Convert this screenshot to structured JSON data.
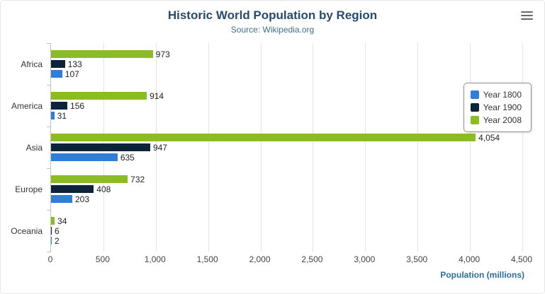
{
  "header": {
    "title": "Historic World Population by Region",
    "subtitle": "Source: Wikipedia.org"
  },
  "export_menu": {
    "icon": "hamburger-icon"
  },
  "chart_data": {
    "type": "bar",
    "orientation": "horizontal",
    "title": "Historic World Population by Region",
    "subtitle": "Source: Wikipedia.org",
    "categories": [
      "Africa",
      "America",
      "Asia",
      "Europe",
      "Oceania"
    ],
    "series": [
      {
        "name": "Year 1800",
        "color": "#2f7ed8",
        "values": [
          107,
          31,
          635,
          203,
          2
        ]
      },
      {
        "name": "Year 1900",
        "color": "#0d233a",
        "values": [
          133,
          156,
          947,
          408,
          6
        ]
      },
      {
        "name": "Year 2008",
        "color": "#8bbc21",
        "values": [
          973,
          914,
          4054,
          732,
          34
        ]
      }
    ],
    "xlabel": "Population (millions)",
    "ylabel": "",
    "xlim": [
      0,
      4500
    ],
    "x_ticks": [
      0,
      500,
      1000,
      1500,
      2000,
      2500,
      3000,
      3500,
      4000,
      4500
    ],
    "grid": true,
    "legend": {
      "position": "right",
      "items": [
        "Year 1800",
        "Year 1900",
        "Year 2008"
      ]
    },
    "bar_order_top_to_bottom": [
      "Year 2008",
      "Year 1900",
      "Year 1800"
    ]
  }
}
